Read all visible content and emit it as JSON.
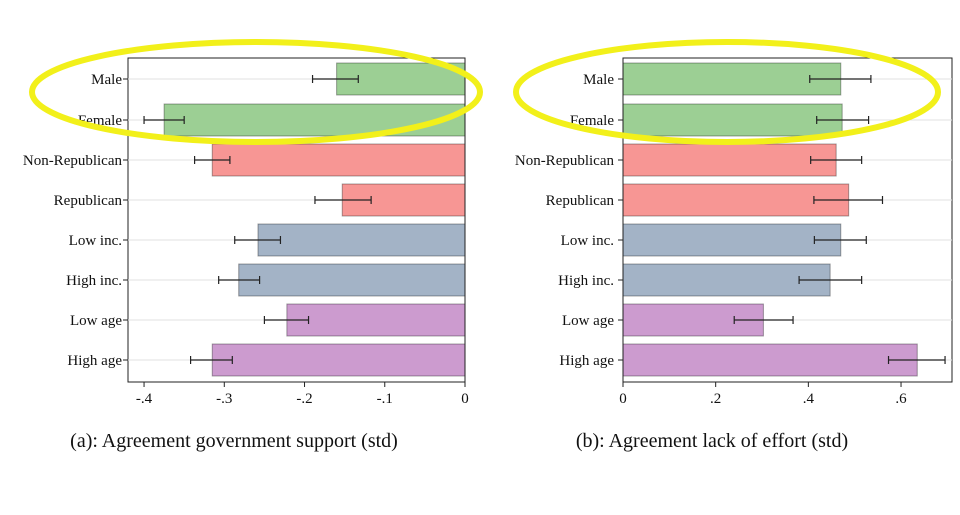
{
  "colors": {
    "gender": "#9ccf94",
    "party": "#f79694",
    "income": "#a3b3c6",
    "age": "#cc9bcf",
    "highlight": "#f2f01a"
  },
  "chart_data": [
    {
      "type": "bar",
      "orientation": "horizontal",
      "caption": "(a): Agreement government support (std)",
      "categories": [
        "Male",
        "Female",
        "Non-Republican",
        "Republican",
        "Low inc.",
        "High inc.",
        "Low age",
        "High age"
      ],
      "groups": [
        "gender",
        "gender",
        "party",
        "party",
        "income",
        "income",
        "age",
        "age"
      ],
      "values": [
        -0.16,
        -0.375,
        -0.315,
        -0.153,
        -0.258,
        -0.282,
        -0.222,
        -0.315
      ],
      "ci_low": [
        -0.19,
        -0.4,
        -0.337,
        -0.187,
        -0.287,
        -0.307,
        -0.25,
        -0.342
      ],
      "ci_high": [
        -0.133,
        -0.35,
        -0.293,
        -0.117,
        -0.23,
        -0.256,
        -0.195,
        -0.29
      ],
      "xlim": [
        -0.42,
        0.0
      ],
      "xticks": [
        -0.4,
        -0.3,
        -0.2,
        -0.1,
        0
      ],
      "xtick_labels": [
        "-.4",
        "-.3",
        "-.2",
        "-.1",
        "0"
      ],
      "highlighted": [
        "Male",
        "Female"
      ]
    },
    {
      "type": "bar",
      "orientation": "horizontal",
      "caption": "(b): Agreement lack of effort (std)",
      "categories": [
        "Male",
        "Female",
        "Non-Republican",
        "Republican",
        "Low inc.",
        "High inc.",
        "Low age",
        "High age"
      ],
      "groups": [
        "gender",
        "gender",
        "party",
        "party",
        "income",
        "income",
        "age",
        "age"
      ],
      "values": [
        0.47,
        0.473,
        0.46,
        0.487,
        0.47,
        0.447,
        0.303,
        0.635
      ],
      "ci_low": [
        0.403,
        0.418,
        0.405,
        0.412,
        0.413,
        0.38,
        0.24,
        0.573
      ],
      "ci_high": [
        0.535,
        0.53,
        0.515,
        0.56,
        0.525,
        0.515,
        0.367,
        0.695
      ],
      "xlim": [
        0.0,
        0.71
      ],
      "xticks": [
        0,
        0.2,
        0.4,
        0.6
      ],
      "xtick_labels": [
        "0",
        ".2",
        ".4",
        ".6"
      ],
      "highlighted": [
        "Male",
        "Female"
      ]
    }
  ]
}
